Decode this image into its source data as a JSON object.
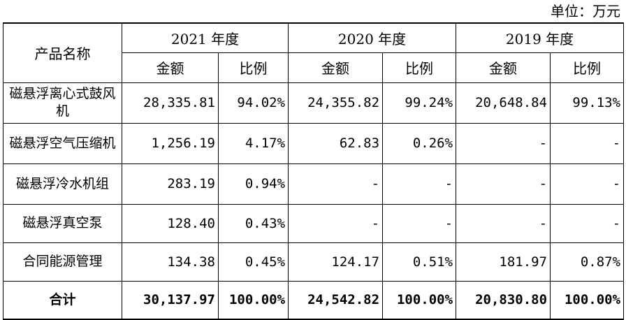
{
  "unit_label": "单位：万元",
  "table": {
    "header": {
      "product_col": "产品名称",
      "years": [
        "2021 年度",
        "2020 年度",
        "2019 年度"
      ],
      "amount_label": "金额",
      "ratio_label": "比例"
    },
    "rows": [
      {
        "name": "磁悬浮离心式鼓风机",
        "values": [
          "28,335.81",
          "94.02%",
          "24,355.82",
          "99.24%",
          "20,648.84",
          "99.13%"
        ]
      },
      {
        "name": "磁悬浮空气压缩机",
        "values": [
          "1,256.19",
          "4.17%",
          "62.83",
          "0.26%",
          "-",
          "-"
        ]
      },
      {
        "name": "磁悬浮冷水机组",
        "values": [
          "283.19",
          "0.94%",
          "-",
          "-",
          "-",
          "-"
        ]
      },
      {
        "name": "磁悬浮真空泵",
        "values": [
          "128.40",
          "0.43%",
          "-",
          "-",
          "-",
          "-"
        ]
      },
      {
        "name": "合同能源管理",
        "values": [
          "134.38",
          "0.45%",
          "124.17",
          "0.51%",
          "181.97",
          "0.87%"
        ]
      }
    ],
    "total": {
      "name": "合计",
      "values": [
        "30,137.97",
        "100.00%",
        "24,542.82",
        "100.00%",
        "20,830.80",
        "100.00%"
      ]
    }
  }
}
